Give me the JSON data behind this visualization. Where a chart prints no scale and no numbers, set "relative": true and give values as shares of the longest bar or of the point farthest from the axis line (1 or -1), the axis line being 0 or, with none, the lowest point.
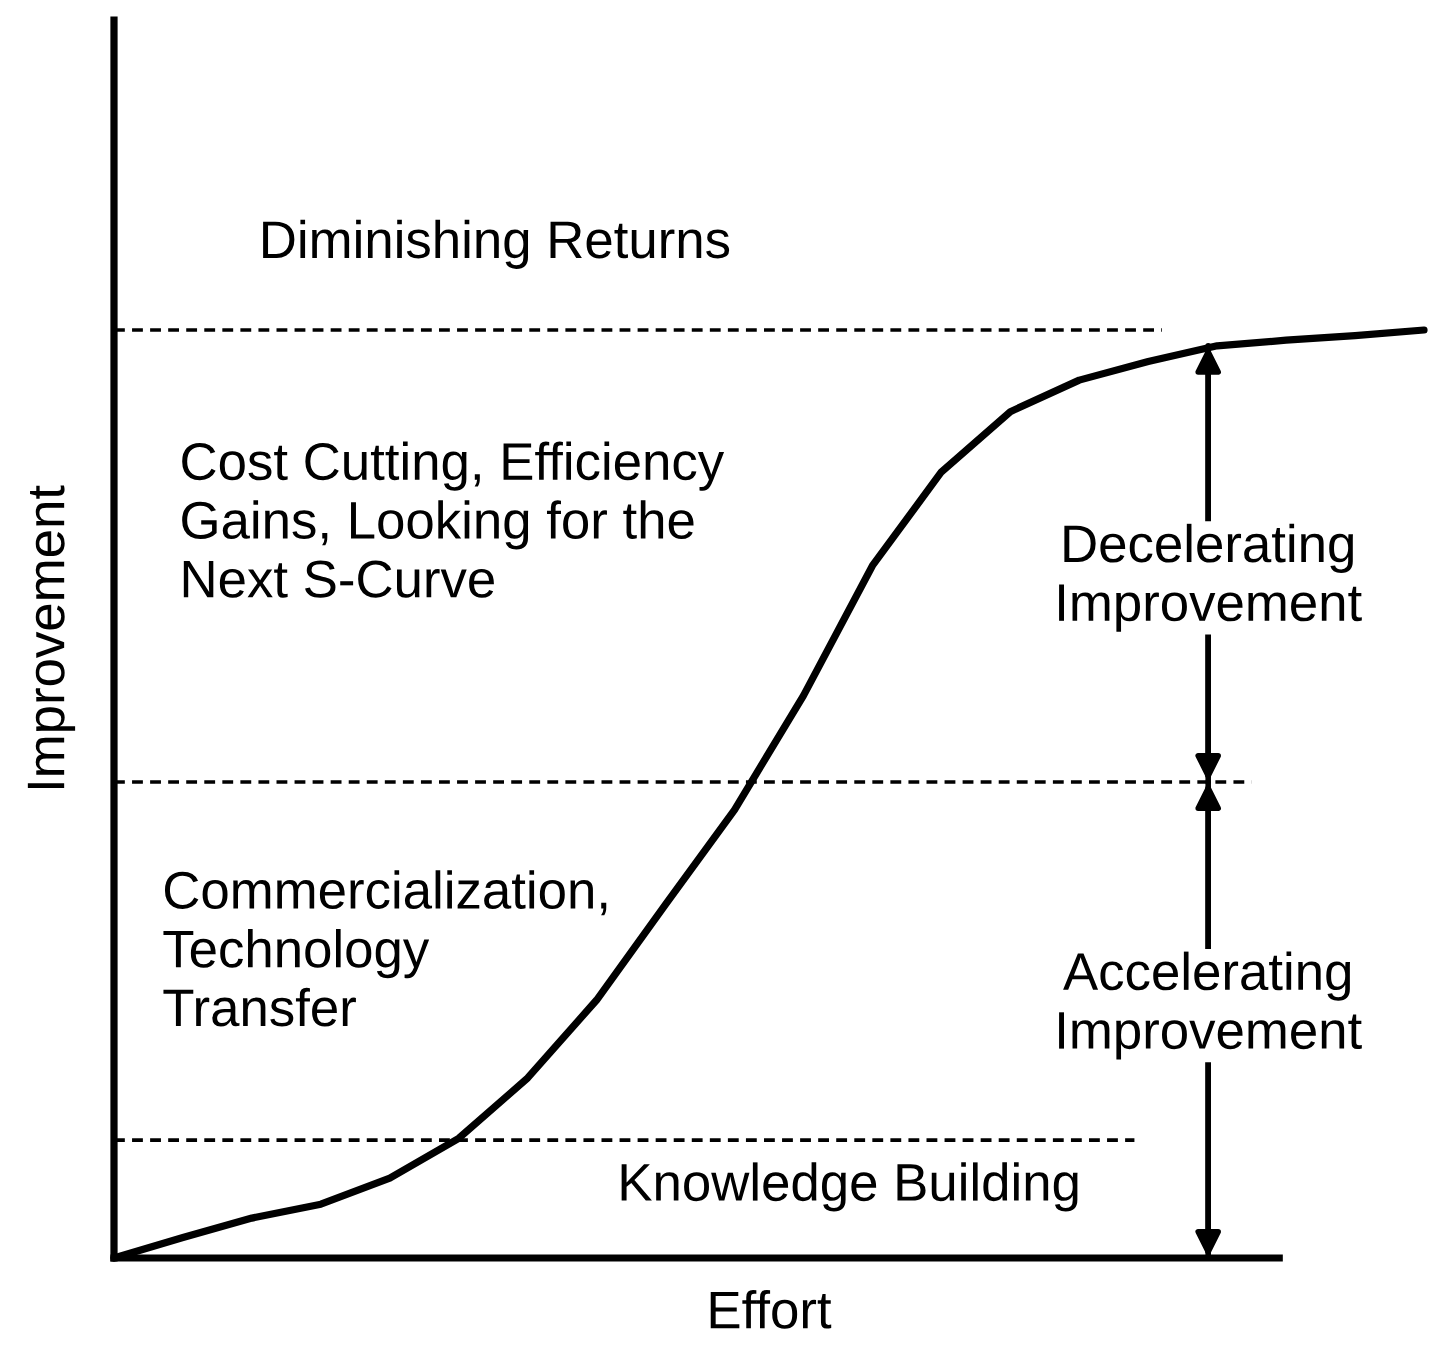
{
  "chart_data": {
    "type": "line",
    "relative": true,
    "xlabel": "Effort",
    "ylabel": "Improvement",
    "categories": [
      null,
      null,
      null,
      null,
      null,
      null,
      null,
      null,
      null,
      null,
      null,
      null,
      null,
      null,
      null,
      null,
      null,
      null,
      null,
      null
    ],
    "series": [
      {
        "color": "#000000",
        "values": [
          0,
          0.022,
          0.043,
          0.058,
          0.086,
          0.129,
          0.194,
          0.278,
          0.381,
          0.483,
          0.606,
          0.746,
          0.847,
          0.912,
          0.946,
          0.966,
          0.983,
          0.989,
          0.994,
          1
        ]
      }
    ],
    "ref_lines": [
      {
        "axis": "y",
        "value": 1,
        "label": "Diminishing Returns",
        "color": "#000000",
        "line_style": "dashed"
      },
      {
        "axis": "y",
        "value": 0.513,
        "color": "#000000",
        "line_style": "dashed"
      },
      {
        "axis": "y",
        "value": 0.127,
        "label": "Knowledge Building",
        "color": "#000000",
        "line_style": "dashed"
      }
    ],
    "annotations": [
      "Cost Cutting, Efficiency\nGains, Looking for the\nNext S-Curve",
      "Commercialization,\nTechnology\nTransfer",
      "Decelerating\nImprovement",
      "Accelerating\nImprovement"
    ],
    "grid": false,
    "marker": "none",
    "line_style": "solid"
  }
}
